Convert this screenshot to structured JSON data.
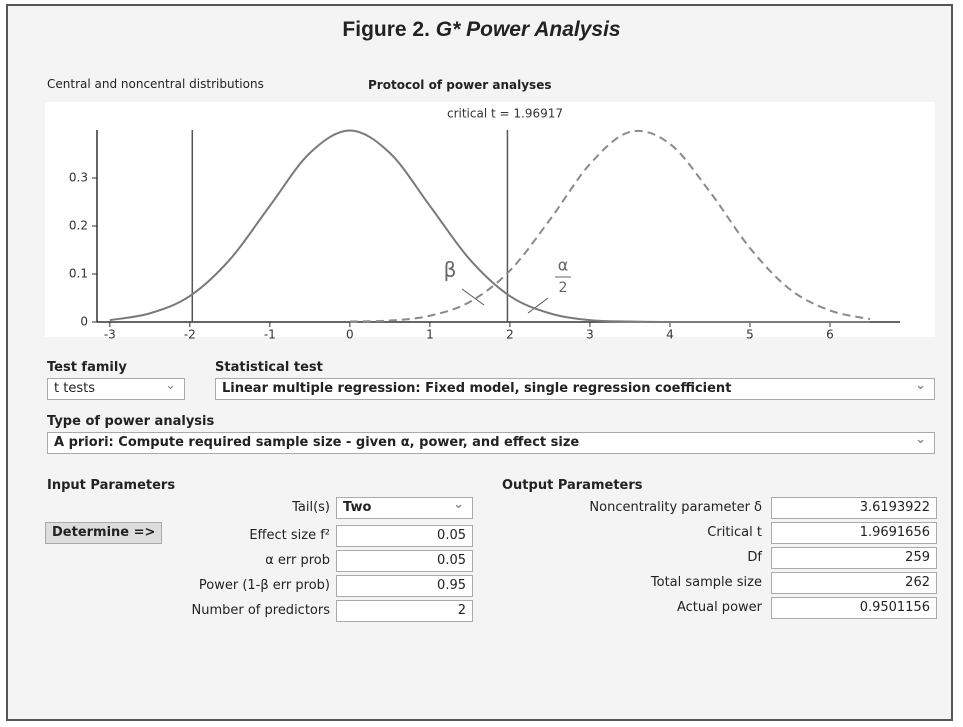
{
  "figure_title": {
    "label": "Figure 2.",
    "italic": "G* Power Analysis"
  },
  "tabs": [
    "Central and noncentral distributions",
    "Protocol of power analyses"
  ],
  "chart_data": {
    "type": "line",
    "annotation": "critical t = 1.96917",
    "critical_lines": [
      -1.96917,
      1.96917
    ],
    "beta_label": "β",
    "alpha_label": "α",
    "alpha_denominator": "2",
    "x": [
      -3,
      -2.5,
      -2,
      -1.5,
      -1,
      -0.5,
      0,
      0.5,
      1,
      1.5,
      2,
      2.5,
      3,
      3.5,
      4,
      4.5,
      5,
      5.5,
      6,
      6.5
    ],
    "series": [
      {
        "color": "#7a7a7a",
        "dashed": false,
        "values": [
          0.004,
          0.018,
          0.054,
          0.13,
          0.242,
          0.352,
          0.399,
          0.352,
          0.242,
          0.13,
          0.054,
          0.018,
          0.004,
          0.001,
          0,
          0,
          0,
          0,
          0,
          0
        ]
      },
      {
        "color": "#8a8a8a",
        "dashed": true,
        "values": [
          null,
          null,
          null,
          null,
          null,
          null,
          0.001,
          0.003,
          0.013,
          0.042,
          0.107,
          0.213,
          0.329,
          0.396,
          0.371,
          0.271,
          0.154,
          0.068,
          0.024,
          0.006
        ]
      }
    ],
    "xlim": [
      -3.16,
      6.875
    ],
    "ylim": [
      0,
      0.4
    ],
    "xticks": [
      -3,
      -2,
      -1,
      0,
      1,
      2,
      3,
      4,
      5,
      6
    ],
    "yticks": [
      0,
      0.1,
      0.2,
      0.3
    ]
  },
  "test_family": {
    "label": "Test family",
    "value": "t tests"
  },
  "statistical_test": {
    "label": "Statistical test",
    "value": "Linear multiple regression: Fixed model, single regression coefficient"
  },
  "type_of_power_analysis": {
    "label": "Type of power analysis",
    "value": "A priori: Compute required sample size - given α, power, and effect size"
  },
  "input_parameters": {
    "title": "Input Parameters",
    "button": "Determine =>",
    "tails": {
      "label": "Tail(s)",
      "value": "Two"
    },
    "fields": [
      {
        "label": "Effect size f²",
        "value": 0.05
      },
      {
        "label": "α err prob",
        "value": 0.05
      },
      {
        "label": "Power (1-β err prob)",
        "value": 0.95
      },
      {
        "label": "Number of predictors",
        "value": 2
      }
    ]
  },
  "output_parameters": {
    "title": "Output Parameters",
    "fields": [
      {
        "label": "Noncentrality parameter δ",
        "value": 3.6193922
      },
      {
        "label": "Critical t",
        "value": 1.9691656
      },
      {
        "label": "Df",
        "value": 259
      },
      {
        "label": "Total sample size",
        "value": 262
      },
      {
        "label": "Actual power",
        "value": 0.9501156
      }
    ]
  }
}
